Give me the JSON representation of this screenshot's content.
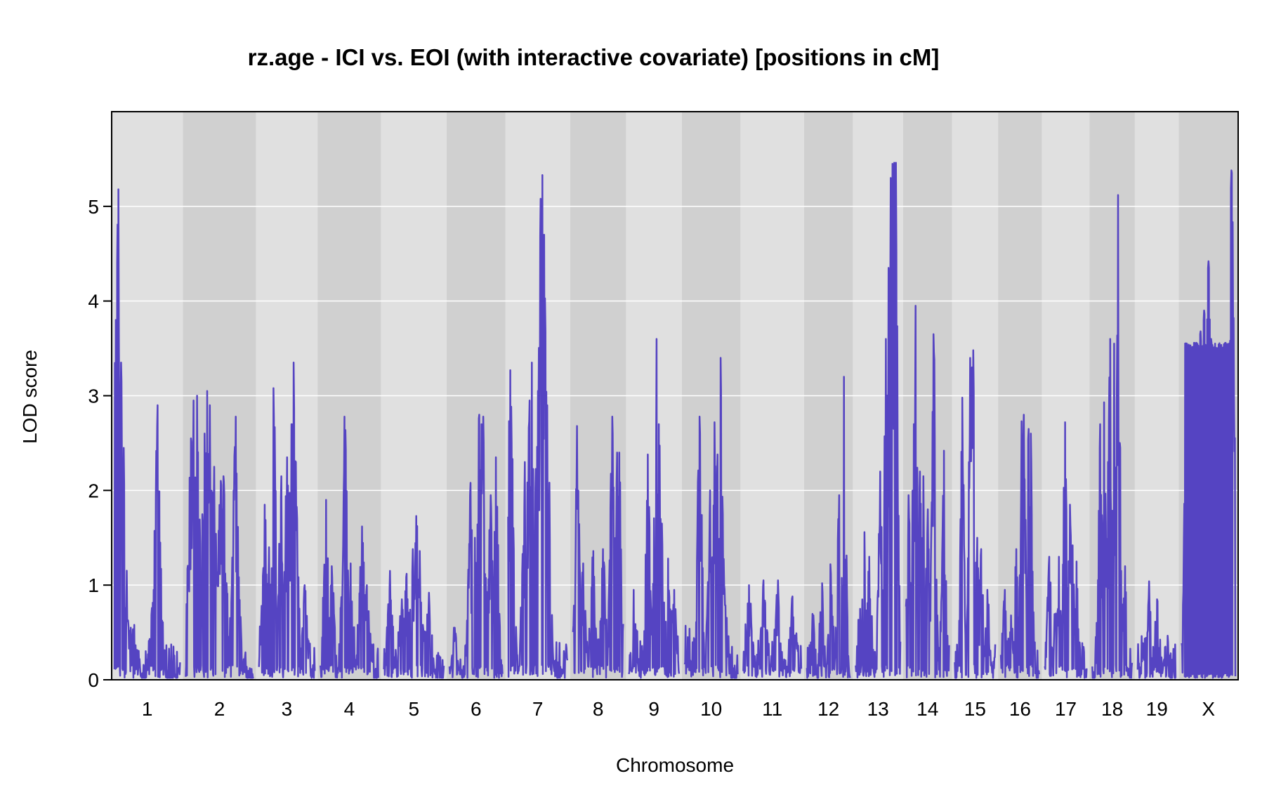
{
  "chart_data": {
    "type": "line",
    "title": "rz.age - ICI vs. EOI (with interactive covariate) [positions in cM]",
    "xlabel": "Chromosome",
    "ylabel": "LOD score",
    "ylim": [
      0,
      6
    ],
    "yticks": [
      0,
      1,
      2,
      3,
      4,
      5
    ],
    "grid": "horizontal",
    "line_color": "#5544c2",
    "band_colors": [
      "#e0e0e0",
      "#d0d0d0"
    ],
    "chromosomes": [
      {
        "name": "1",
        "peaks": [
          [
            0.02,
            3.8
          ],
          [
            0.04,
            4.4
          ],
          [
            0.06,
            5.18
          ],
          [
            0.1,
            3.35
          ],
          [
            0.14,
            2.45
          ],
          [
            0.18,
            0.75
          ],
          [
            0.25,
            0.55
          ],
          [
            0.6,
            0.95
          ],
          [
            0.66,
            2.9
          ]
        ]
      },
      {
        "name": "2",
        "peaks": [
          [
            0.08,
            2.55
          ],
          [
            0.12,
            2.95
          ],
          [
            0.17,
            3.0
          ],
          [
            0.28,
            2.6
          ],
          [
            0.32,
            3.05
          ],
          [
            0.36,
            2.9
          ],
          [
            0.42,
            2.25
          ],
          [
            0.52,
            2.1
          ],
          [
            0.56,
            2.15
          ],
          [
            0.74,
            2.78
          ],
          [
            0.78,
            0.75
          ]
        ]
      },
      {
        "name": "3",
        "peaks": [
          [
            0.1,
            1.85
          ],
          [
            0.18,
            1.4
          ],
          [
            0.26,
            3.08
          ],
          [
            0.4,
            2.15
          ],
          [
            0.5,
            2.35
          ],
          [
            0.58,
            2.7
          ],
          [
            0.62,
            3.35
          ],
          [
            0.66,
            2.3
          ],
          [
            0.82,
            1.0
          ]
        ]
      },
      {
        "name": "4",
        "peaks": [
          [
            0.1,
            1.9
          ],
          [
            0.2,
            1.2
          ],
          [
            0.42,
            2.78
          ],
          [
            0.52,
            1.23
          ],
          [
            0.72,
            1.62
          ],
          [
            0.8,
            1.0
          ]
        ]
      },
      {
        "name": "5",
        "peaks": [
          [
            0.1,
            1.15
          ],
          [
            0.3,
            0.85
          ],
          [
            0.38,
            1.12
          ],
          [
            0.48,
            1.38
          ],
          [
            0.54,
            1.73
          ],
          [
            0.6,
            1.36
          ],
          [
            0.75,
            0.92
          ]
        ]
      },
      {
        "name": "6",
        "peaks": [
          [
            0.1,
            0.55
          ],
          [
            0.4,
            2.08
          ],
          [
            0.48,
            1.5
          ],
          [
            0.56,
            2.8
          ],
          [
            0.6,
            2.7
          ],
          [
            0.64,
            2.78
          ],
          [
            0.78,
            1.95
          ],
          [
            0.88,
            2.35
          ]
        ]
      },
      {
        "name": "7",
        "peaks": [
          [
            0.04,
            3.27
          ],
          [
            0.28,
            2.3
          ],
          [
            0.36,
            2.95
          ],
          [
            0.4,
            3.35
          ],
          [
            0.5,
            3.05
          ],
          [
            0.55,
            5.08
          ],
          [
            0.58,
            5.33
          ],
          [
            0.61,
            4.7
          ],
          [
            0.66,
            2.9
          ]
        ]
      },
      {
        "name": "8",
        "peaks": [
          [
            0.08,
            2.68
          ],
          [
            0.2,
            1.23
          ],
          [
            0.4,
            1.36
          ],
          [
            0.6,
            1.38
          ],
          [
            0.78,
            2.78
          ],
          [
            0.88,
            2.4
          ],
          [
            0.92,
            2.4
          ]
        ]
      },
      {
        "name": "9",
        "peaks": [
          [
            0.1,
            0.95
          ],
          [
            0.38,
            2.38
          ],
          [
            0.55,
            3.6
          ],
          [
            0.6,
            2.7
          ],
          [
            0.66,
            1.65
          ],
          [
            0.78,
            1.28
          ],
          [
            0.9,
            0.95
          ]
        ]
      },
      {
        "name": "10",
        "peaks": [
          [
            0.06,
            0.45
          ],
          [
            0.28,
            2.78
          ],
          [
            0.48,
            2.0
          ],
          [
            0.56,
            2.72
          ],
          [
            0.62,
            2.38
          ],
          [
            0.68,
            3.4
          ],
          [
            0.74,
            1.0
          ]
        ]
      },
      {
        "name": "11",
        "peaks": [
          [
            0.1,
            1.0
          ],
          [
            0.35,
            1.05
          ],
          [
            0.6,
            1.05
          ],
          [
            0.85,
            0.88
          ]
        ]
      },
      {
        "name": "12",
        "peaks": [
          [
            0.15,
            0.68
          ],
          [
            0.35,
            1.02
          ],
          [
            0.55,
            1.22
          ],
          [
            0.75,
            1.95
          ],
          [
            0.86,
            3.2
          ]
        ]
      },
      {
        "name": "13",
        "peaks": [
          [
            0.1,
            0.75
          ],
          [
            0.2,
            1.56
          ],
          [
            0.3,
            1.3
          ],
          [
            0.55,
            2.2
          ],
          [
            0.68,
            3.6
          ],
          [
            0.74,
            4.35
          ],
          [
            0.78,
            5.3
          ],
          [
            0.82,
            5.45
          ],
          [
            0.86,
            5.46
          ],
          [
            0.9,
            5.46
          ]
        ]
      },
      {
        "name": "14",
        "peaks": [
          [
            0.06,
            1.95
          ],
          [
            0.18,
            2.7
          ],
          [
            0.22,
            3.95
          ],
          [
            0.32,
            2.2
          ],
          [
            0.4,
            2.15
          ],
          [
            0.5,
            1.8
          ],
          [
            0.64,
            3.65
          ],
          [
            0.88,
            2.42
          ]
        ]
      },
      {
        "name": "15",
        "peaks": [
          [
            0.18,
            2.98
          ],
          [
            0.38,
            3.4
          ],
          [
            0.42,
            3.3
          ],
          [
            0.46,
            3.48
          ],
          [
            0.55,
            1.5
          ],
          [
            0.65,
            1.38
          ],
          [
            0.8,
            0.95
          ]
        ]
      },
      {
        "name": "16",
        "peaks": [
          [
            0.1,
            0.95
          ],
          [
            0.26,
            0.68
          ],
          [
            0.4,
            1.38
          ],
          [
            0.54,
            2.73
          ],
          [
            0.6,
            2.8
          ],
          [
            0.72,
            2.65
          ],
          [
            0.78,
            2.6
          ]
        ]
      },
      {
        "name": "17",
        "peaks": [
          [
            0.1,
            1.3
          ],
          [
            0.26,
            0.7
          ],
          [
            0.34,
            1.3
          ],
          [
            0.48,
            2.72
          ],
          [
            0.6,
            1.85
          ],
          [
            0.66,
            1.42
          ],
          [
            0.76,
            1.25
          ]
        ]
      },
      {
        "name": "18",
        "peaks": [
          [
            0.2,
            2.7
          ],
          [
            0.3,
            2.93
          ],
          [
            0.4,
            2.3
          ],
          [
            0.45,
            3.6
          ],
          [
            0.55,
            3.55
          ],
          [
            0.65,
            5.12
          ],
          [
            0.72,
            1.15
          ],
          [
            0.82,
            1.2
          ]
        ]
      },
      {
        "name": "19",
        "peaks": [
          [
            0.15,
            0.3
          ],
          [
            0.3,
            1.04
          ],
          [
            0.5,
            0.85
          ],
          [
            0.72,
            0.35
          ]
        ]
      },
      {
        "name": "X",
        "peaks": [
          [
            0.1,
            3.55
          ],
          [
            0.35,
            3.68
          ],
          [
            0.42,
            3.9
          ],
          [
            0.5,
            4.42
          ],
          [
            0.55,
            3.6
          ],
          [
            0.9,
            3.58
          ],
          [
            0.93,
            5.38
          ],
          [
            0.96,
            3.55
          ]
        ]
      }
    ]
  }
}
